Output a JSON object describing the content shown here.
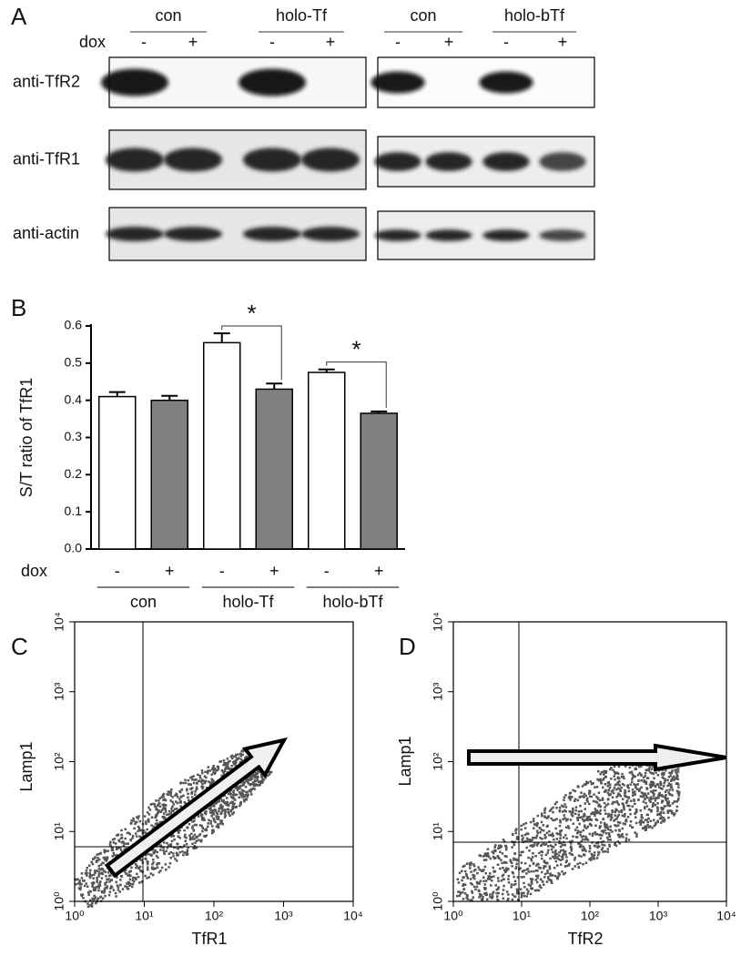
{
  "panel_a": {
    "letter": "A",
    "groups": [
      "con",
      "holo-Tf",
      "con",
      "holo-bTf"
    ],
    "dox_label": "dox",
    "dox_signs": [
      "-",
      "+",
      "-",
      "+",
      "-",
      "+",
      "-",
      "+"
    ],
    "rows": [
      "anti-TfR2",
      "anti-TfR1",
      "anti-actin"
    ]
  },
  "chart_data": {
    "type": "bar",
    "letter": "B",
    "ylabel": "S/T ratio of TfR1",
    "row_label": "dox",
    "categories": [
      "-",
      "+",
      "-",
      "+",
      "-",
      "+"
    ],
    "groups": [
      "con",
      "holo-Tf",
      "holo-bTf"
    ],
    "values": [
      0.41,
      0.4,
      0.555,
      0.43,
      0.475,
      0.365
    ],
    "errors": [
      0.012,
      0.012,
      0.025,
      0.015,
      0.008,
      0.005
    ],
    "colors": [
      "#ffffff",
      "#808080",
      "#ffffff",
      "#808080",
      "#ffffff",
      "#808080"
    ],
    "ylim": [
      0,
      0.6
    ],
    "yticks": [
      {
        "value": 0,
        "label": "0.0"
      },
      0.1,
      0.2,
      0.3,
      0.4,
      0.5,
      0.6
    ],
    "annotations": [
      {
        "text": "*",
        "from": 2,
        "to": 3
      },
      {
        "text": "*",
        "from": 4,
        "to": 5
      }
    ]
  },
  "flow_plots": [
    {
      "letter": "C",
      "xlabel": "TfR1",
      "ylabel": "Lamp1",
      "log": true,
      "xlim": [
        1,
        10000
      ],
      "ylim": [
        1,
        10000
      ],
      "xticks": [
        {
          "value": 1,
          "label": "10⁰"
        },
        {
          "value": 10,
          "label": "10¹"
        },
        {
          "value": 100,
          "label": "10²"
        },
        {
          "value": 1000,
          "label": "10³"
        },
        {
          "value": 10000,
          "label": "10⁴"
        }
      ],
      "yticks": [
        {
          "value": 1,
          "label": "10⁰"
        },
        {
          "value": 10,
          "label": "10¹"
        },
        {
          "value": 100,
          "label": "10²"
        },
        {
          "value": 1000,
          "label": "10³"
        },
        {
          "value": 10000,
          "label": "10⁴"
        }
      ]
    },
    {
      "letter": "D",
      "xlabel": "TfR2",
      "ylabel": "Lamp1",
      "log": true,
      "xlim": [
        1,
        10000
      ],
      "ylim": [
        1,
        10000
      ],
      "xticks": [
        {
          "value": 1,
          "label": "10⁰"
        },
        {
          "value": 10,
          "label": "10¹"
        },
        {
          "value": 100,
          "label": "10²"
        },
        {
          "value": 1000,
          "label": "10³"
        },
        {
          "value": 10000,
          "label": "10⁴"
        }
      ],
      "yticks": [
        {
          "value": 1,
          "label": "10⁰"
        },
        {
          "value": 10,
          "label": "10¹"
        },
        {
          "value": 100,
          "label": "10²"
        },
        {
          "value": 1000,
          "label": "10³"
        },
        {
          "value": 10000,
          "label": "10⁴"
        }
      ]
    }
  ]
}
